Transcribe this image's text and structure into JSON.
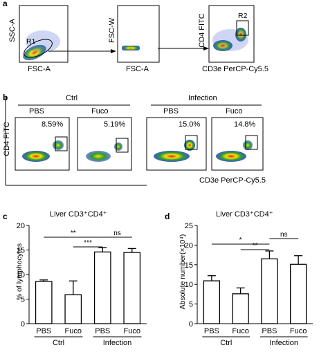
{
  "panels": {
    "a": "a",
    "b": "b",
    "c": "c",
    "d": "d"
  },
  "panel_a": {
    "plot1": {
      "xlabel": "FSC-A",
      "ylabel": "SSC-A",
      "gate": "R1"
    },
    "plot2": {
      "xlabel": "FSC-A",
      "ylabel": "FSC-W"
    },
    "plot3": {
      "xlabel": "CD3e PerCP-Cy5.5",
      "ylabel": "CD4 FITC",
      "gate": "R2"
    }
  },
  "panel_b": {
    "group_ctrl": "Ctrl",
    "group_infection": "Infection",
    "subgroups": [
      "PBS",
      "Fuco",
      "PBS",
      "Fuco"
    ],
    "percentages": [
      "8.59%",
      "5.19%",
      "15.0%",
      "14.8%"
    ],
    "ylabel": "CD4 FITC",
    "xlabel": "CD3e PerCP-Cy5.5"
  },
  "chart_data": [
    {
      "type": "bar",
      "panel": "c",
      "title": "Liver  CD3⁺CD4⁺",
      "ylabel": "% of lymphocytes",
      "categories": [
        "PBS",
        "Fuco",
        "PBS",
        "Fuco"
      ],
      "groups": [
        "Ctrl",
        "Infection"
      ],
      "values": [
        8.6,
        5.9,
        14.6,
        14.5
      ],
      "errors": [
        0.3,
        2.8,
        0.9,
        0.8
      ],
      "ylim": [
        0,
        20
      ],
      "yticks": [
        "0",
        "5",
        "10",
        "15",
        "20"
      ],
      "significance": [
        "**",
        "***",
        "ns"
      ]
    },
    {
      "type": "bar",
      "panel": "d",
      "title": "Liver  CD3⁺CD4⁺",
      "ylabel": "Absolute number(×10⁴)",
      "categories": [
        "PBS",
        "Fuco",
        "PBS",
        "Fuco"
      ],
      "groups": [
        "Ctrl",
        "Infection"
      ],
      "values": [
        10.9,
        7.6,
        16.5,
        15.1
      ],
      "errors": [
        1.3,
        1.5,
        2.0,
        2.2
      ],
      "ylim": [
        0,
        25
      ],
      "yticks": [
        "0",
        "5",
        "10",
        "15",
        "20",
        "25"
      ],
      "significance": [
        "*",
        "**",
        "ns"
      ]
    }
  ]
}
